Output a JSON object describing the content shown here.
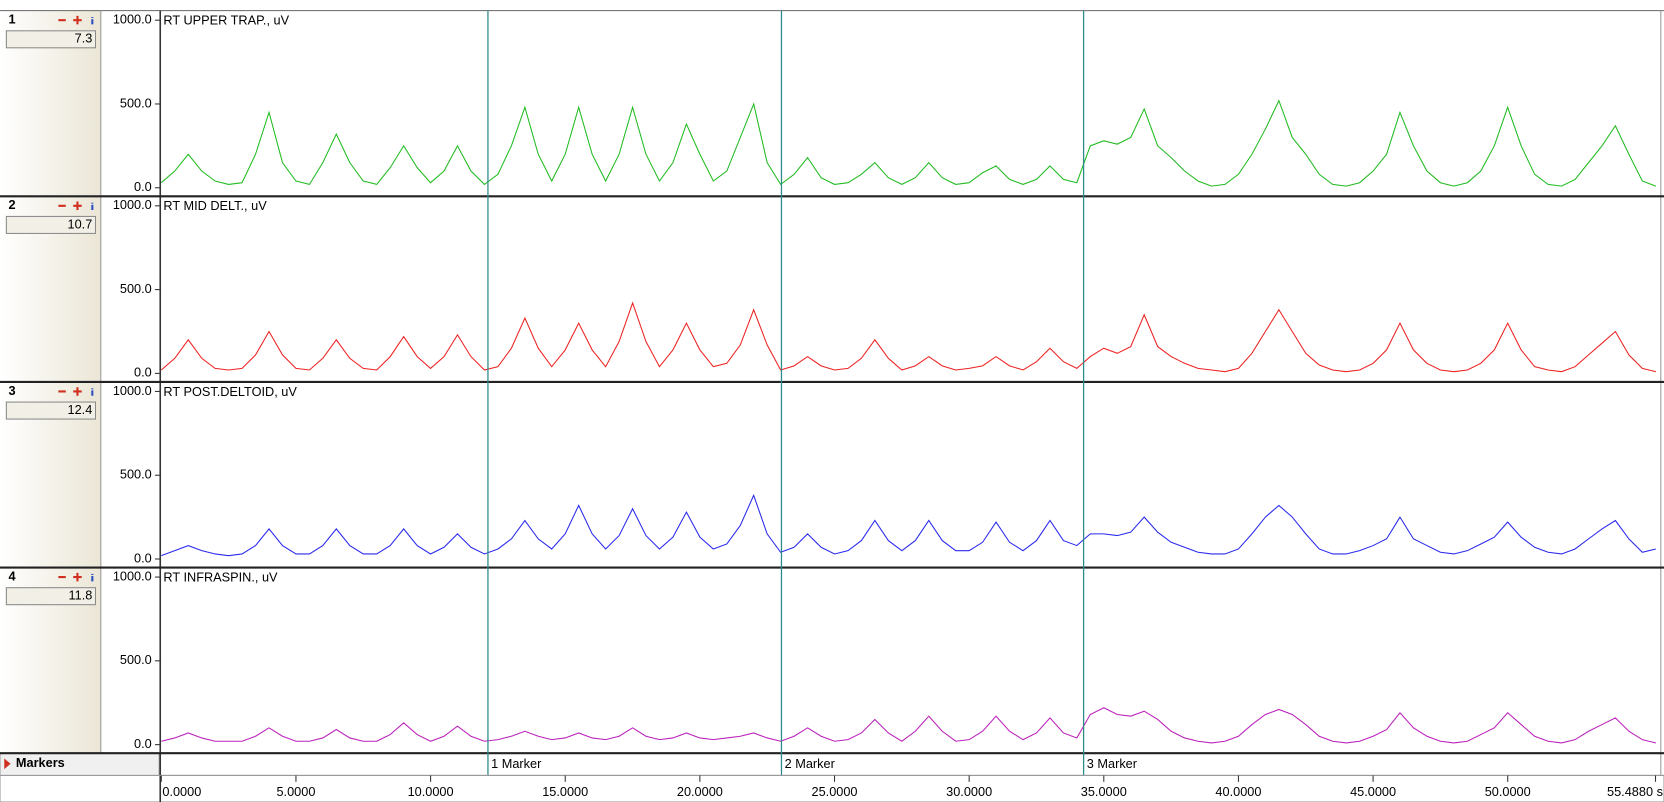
{
  "chart_data": {
    "type": "line",
    "xlim": [
      0,
      55.488
    ],
    "xticks": [
      {
        "value": 0,
        "label": "0.0000"
      },
      {
        "value": 5,
        "label": "5.0000"
      },
      {
        "value": 10,
        "label": "10.0000"
      },
      {
        "value": 15,
        "label": "15.0000"
      },
      {
        "value": 20,
        "label": "20.0000"
      },
      {
        "value": 25,
        "label": "25.0000"
      },
      {
        "value": 30,
        "label": "30.0000"
      },
      {
        "value": 35,
        "label": "35.0000"
      },
      {
        "value": 40,
        "label": "40.0000"
      },
      {
        "value": 45,
        "label": "45.0000"
      },
      {
        "value": 50,
        "label": "50.0000"
      },
      {
        "value": 55.488,
        "label": "55.4880 s"
      }
    ],
    "ylim": [
      0,
      1000
    ],
    "yticks": [
      {
        "value": 0,
        "label": "0.0"
      },
      {
        "value": 500,
        "label": "500.0"
      },
      {
        "value": 1000,
        "label": "1000.0"
      }
    ],
    "markers_label": "Markers",
    "markers": [
      {
        "x": 12.13,
        "label": "1 Marker"
      },
      {
        "x": 23.03,
        "label": "2 Marker"
      },
      {
        "x": 34.25,
        "label": "3 Marker"
      }
    ],
    "x": [
      0,
      0.5,
      1,
      1.5,
      2,
      2.5,
      3,
      3.5,
      4,
      4.5,
      5,
      5.5,
      6,
      6.5,
      7,
      7.5,
      8,
      8.5,
      9,
      9.5,
      10,
      10.5,
      11,
      11.5,
      12,
      12.5,
      13,
      13.5,
      14,
      14.5,
      15,
      15.5,
      16,
      16.5,
      17,
      17.5,
      18,
      18.5,
      19,
      19.5,
      20,
      20.5,
      21,
      21.5,
      22,
      22.5,
      23,
      23.5,
      24,
      24.5,
      25,
      25.5,
      26,
      26.5,
      27,
      27.5,
      28,
      28.5,
      29,
      29.5,
      30,
      30.5,
      31,
      31.5,
      32,
      32.5,
      33,
      33.5,
      34,
      34.5,
      35,
      35.5,
      36,
      36.5,
      37,
      37.5,
      38,
      38.5,
      39,
      39.5,
      40,
      40.5,
      41,
      41.5,
      42,
      42.5,
      43,
      43.5,
      44,
      44.5,
      45,
      45.5,
      46,
      46.5,
      47,
      47.5,
      48,
      48.5,
      49,
      49.5,
      50,
      50.5,
      51,
      51.5,
      52,
      52.5,
      53,
      53.5,
      54,
      54.5,
      55,
      55.5
    ],
    "series": [
      {
        "channel": 1,
        "name": "RT UPPER TRAP., uV",
        "color": "#22bb22",
        "readout": 7.3,
        "values": [
          30,
          100,
          200,
          100,
          40,
          20,
          30,
          200,
          450,
          150,
          40,
          20,
          150,
          320,
          150,
          40,
          20,
          120,
          250,
          120,
          30,
          100,
          250,
          100,
          20,
          80,
          250,
          480,
          200,
          40,
          200,
          480,
          200,
          40,
          200,
          480,
          200,
          40,
          150,
          380,
          200,
          40,
          100,
          300,
          500,
          150,
          20,
          80,
          180,
          60,
          20,
          30,
          80,
          150,
          60,
          20,
          60,
          150,
          60,
          20,
          30,
          90,
          130,
          50,
          20,
          50,
          130,
          50,
          30,
          250,
          280,
          260,
          300,
          470,
          250,
          180,
          100,
          40,
          10,
          20,
          80,
          200,
          350,
          520,
          300,
          200,
          80,
          20,
          10,
          30,
          100,
          200,
          450,
          250,
          100,
          30,
          10,
          30,
          100,
          250,
          480,
          250,
          80,
          20,
          10,
          50,
          150,
          250,
          370,
          200,
          40,
          10
        ]
      },
      {
        "channel": 2,
        "name": "RT MID DELT., uV",
        "color": "#ee2222",
        "readout": 10.7,
        "values": [
          20,
          90,
          200,
          90,
          30,
          20,
          30,
          110,
          250,
          110,
          30,
          20,
          90,
          200,
          90,
          30,
          20,
          100,
          220,
          100,
          30,
          100,
          230,
          100,
          20,
          40,
          150,
          330,
          150,
          40,
          140,
          300,
          140,
          40,
          190,
          420,
          190,
          40,
          140,
          300,
          140,
          40,
          60,
          170,
          380,
          170,
          20,
          45,
          100,
          45,
          20,
          30,
          90,
          200,
          90,
          20,
          45,
          100,
          45,
          20,
          30,
          45,
          100,
          45,
          20,
          70,
          150,
          70,
          30,
          100,
          150,
          120,
          160,
          350,
          160,
          100,
          60,
          30,
          20,
          10,
          30,
          120,
          250,
          380,
          250,
          120,
          50,
          20,
          10,
          20,
          60,
          140,
          300,
          140,
          60,
          20,
          10,
          20,
          60,
          140,
          300,
          140,
          40,
          20,
          10,
          40,
          110,
          180,
          250,
          110,
          30,
          10
        ]
      },
      {
        "channel": 3,
        "name": "RT POST.DELTOID, uV",
        "color": "#2a2aee",
        "readout": 12.4,
        "values": [
          20,
          50,
          80,
          50,
          30,
          20,
          30,
          80,
          180,
          80,
          30,
          30,
          80,
          180,
          80,
          30,
          30,
          80,
          180,
          80,
          30,
          70,
          150,
          70,
          30,
          60,
          120,
          230,
          120,
          60,
          150,
          320,
          150,
          60,
          140,
          300,
          140,
          60,
          130,
          280,
          130,
          60,
          90,
          200,
          380,
          150,
          40,
          70,
          150,
          70,
          30,
          50,
          110,
          230,
          110,
          50,
          110,
          230,
          110,
          50,
          50,
          100,
          220,
          100,
          50,
          110,
          230,
          110,
          80,
          150,
          150,
          140,
          160,
          250,
          160,
          100,
          70,
          40,
          30,
          30,
          60,
          150,
          250,
          320,
          250,
          150,
          60,
          30,
          30,
          50,
          80,
          120,
          250,
          120,
          80,
          40,
          30,
          50,
          90,
          130,
          220,
          130,
          70,
          40,
          30,
          60,
          120,
          180,
          230,
          120,
          40,
          60
        ]
      },
      {
        "channel": 4,
        "name": "RT INFRASPIN., uV",
        "color": "#bb22bb",
        "readout": 11.8,
        "values": [
          20,
          40,
          70,
          40,
          20,
          20,
          20,
          50,
          100,
          50,
          20,
          20,
          40,
          90,
          40,
          20,
          20,
          60,
          130,
          60,
          20,
          50,
          110,
          50,
          20,
          30,
          50,
          80,
          50,
          30,
          40,
          70,
          40,
          30,
          50,
          100,
          50,
          30,
          40,
          70,
          40,
          30,
          40,
          50,
          70,
          40,
          20,
          50,
          100,
          50,
          20,
          30,
          70,
          150,
          70,
          20,
          80,
          170,
          80,
          20,
          30,
          80,
          170,
          80,
          30,
          70,
          160,
          70,
          40,
          180,
          220,
          180,
          170,
          200,
          150,
          80,
          40,
          20,
          10,
          20,
          50,
          120,
          180,
          210,
          180,
          120,
          50,
          20,
          10,
          20,
          50,
          90,
          190,
          100,
          50,
          20,
          10,
          20,
          60,
          100,
          190,
          120,
          50,
          20,
          10,
          30,
          80,
          120,
          160,
          80,
          30,
          10
        ]
      }
    ]
  }
}
